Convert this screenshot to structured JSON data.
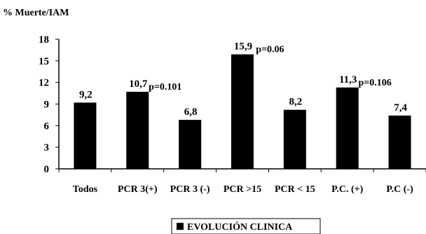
{
  "chart_data": {
    "type": "bar",
    "ylabel": "% Muerte/IAM",
    "ylim": [
      0,
      18
    ],
    "yticks": [
      0,
      3,
      6,
      9,
      12,
      15,
      18
    ],
    "categories": [
      "Todos",
      "PCR 3(+)",
      "PCR 3 (-)",
      "PCR >15",
      "PCR < 15",
      "P.C.  (+)",
      "P.C (-)"
    ],
    "series": [
      {
        "name": "EVOLUCIÓN CLINICA",
        "values": [
          9.2,
          10.7,
          6.8,
          15.9,
          8.2,
          11.3,
          7.4
        ]
      }
    ],
    "data_labels": [
      "9,2",
      "10,7",
      "6,8",
      "15,9",
      "8,2",
      "11,3",
      "7,4"
    ],
    "annotations": [
      {
        "text": "p=0.101",
        "between": [
          1,
          2
        ]
      },
      {
        "text": "p=0.06",
        "between": [
          3,
          4
        ]
      },
      {
        "text": "p=0.106",
        "between": [
          5,
          6
        ]
      }
    ],
    "grid": false,
    "legend_position": "bottom-center",
    "bar_color": "#000000"
  }
}
